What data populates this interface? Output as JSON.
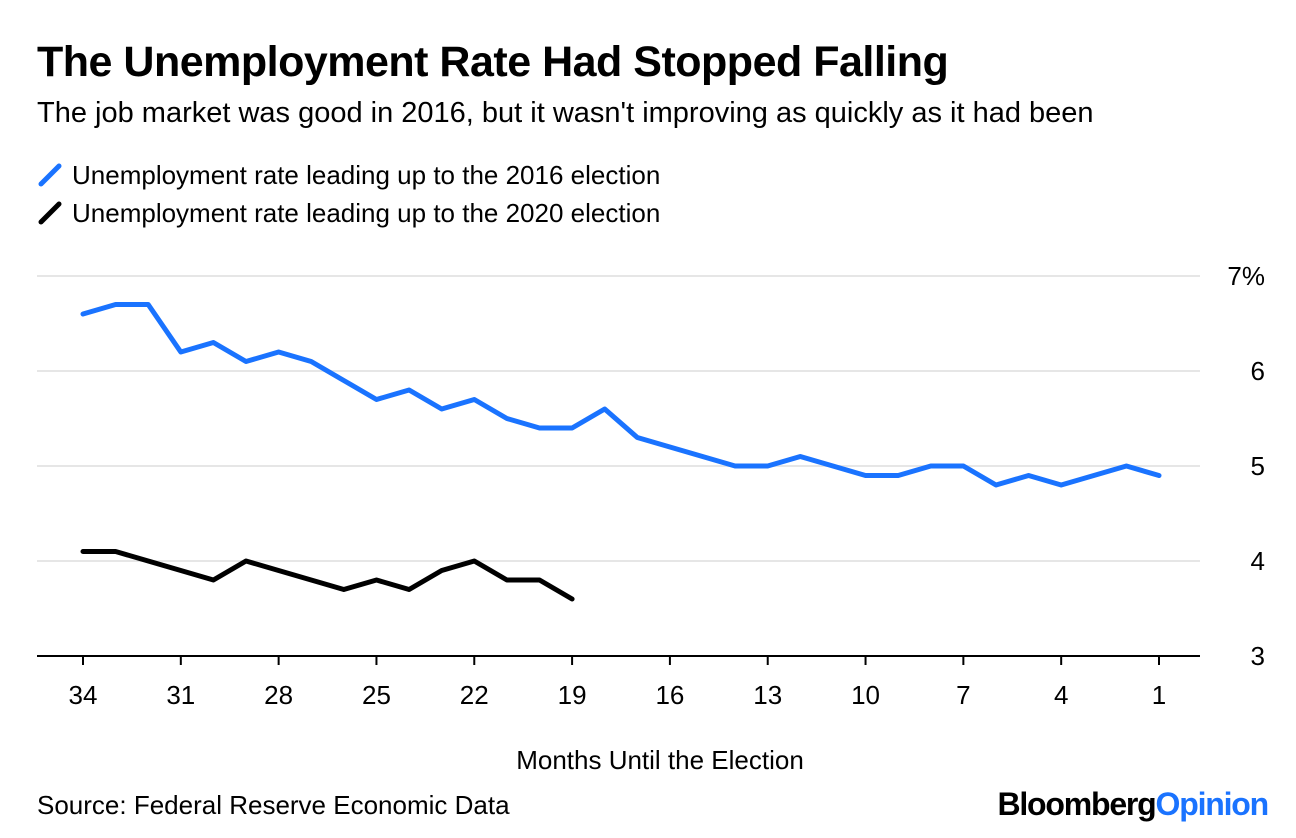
{
  "colors": {
    "series_2016": "#1a73ff",
    "series_2020": "#000000",
    "grid": "#e6e6e6",
    "axis": "#000000",
    "brand_accent": "#1a73ff"
  },
  "chart_data": {
    "type": "line",
    "title": "The Unemployment Rate Had Stopped Falling",
    "subtitle": "The job market was good in 2016, but it wasn't improving as quickly as it had been",
    "xlabel": "Months Until the Election",
    "ylabel": "",
    "xlim": [
      34,
      1
    ],
    "ylim": [
      3,
      7
    ],
    "x_ticks": [
      34,
      31,
      28,
      25,
      22,
      19,
      16,
      13,
      10,
      7,
      4,
      1
    ],
    "y_ticks": [
      3,
      4,
      5,
      6,
      7
    ],
    "y_tick_labels": [
      "3",
      "4",
      "5",
      "6",
      "7%"
    ],
    "grid": true,
    "legend_position": "top-left",
    "series": [
      {
        "name": "Unemployment rate leading up to the 2016 election",
        "color": "#1a73ff",
        "x": [
          34,
          33,
          32,
          31,
          30,
          29,
          28,
          27,
          26,
          25,
          24,
          23,
          22,
          21,
          20,
          19,
          18,
          17,
          16,
          15,
          14,
          13,
          12,
          11,
          10,
          9,
          8,
          7,
          6,
          5,
          4,
          3,
          2,
          1
        ],
        "values": [
          6.6,
          6.7,
          6.7,
          6.2,
          6.3,
          6.1,
          6.2,
          6.1,
          5.9,
          5.7,
          5.8,
          5.6,
          5.7,
          5.5,
          5.4,
          5.4,
          5.6,
          5.3,
          5.2,
          5.1,
          5.0,
          5.0,
          5.1,
          5.0,
          4.9,
          4.9,
          5.0,
          5.0,
          4.8,
          4.9,
          4.8,
          4.9,
          5.0,
          4.9
        ]
      },
      {
        "name": "Unemployment rate leading up to the 2020 election",
        "color": "#000000",
        "x": [
          34,
          33,
          32,
          31,
          30,
          29,
          28,
          27,
          26,
          25,
          24,
          23,
          22,
          21,
          20,
          19
        ],
        "values": [
          4.1,
          4.1,
          4.0,
          3.9,
          3.8,
          4.0,
          3.9,
          3.8,
          3.7,
          3.8,
          3.7,
          3.9,
          4.0,
          3.8,
          3.8,
          3.6
        ]
      }
    ]
  },
  "source": "Source: Federal Reserve Economic Data",
  "brand": {
    "part1": "Bloomberg",
    "part2": "Opinion"
  }
}
